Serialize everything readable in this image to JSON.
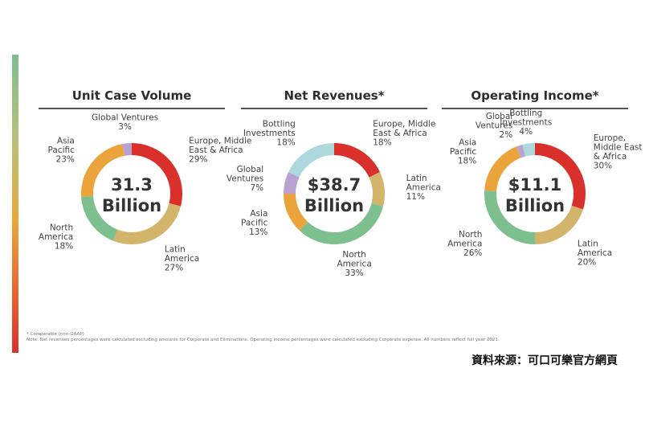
{
  "chart_data": [
    {
      "type": "pie",
      "title": "Unit Case Volume",
      "center_label": [
        "31.3",
        "Billion"
      ],
      "slices": [
        {
          "name": [
            "Europe, Middle",
            "East & Africa"
          ],
          "value": 29,
          "label": "29%",
          "color": "#d9302c"
        },
        {
          "name": [
            "Latin",
            "America"
          ],
          "value": 27,
          "label": "27%",
          "color": "#d2b46a"
        },
        {
          "name": [
            "North",
            "America"
          ],
          "value": 18,
          "label": "18%",
          "color": "#7dbf8e"
        },
        {
          "name": [
            "Asia",
            "Pacific"
          ],
          "value": 23,
          "label": "23%",
          "color": "#eba43c"
        },
        {
          "name": [
            "Global Ventures"
          ],
          "value": 3,
          "label": "3%",
          "color": "#b8a2cf"
        }
      ]
    },
    {
      "type": "pie",
      "title": "Net Revenues*",
      "center_label": [
        "$38.7",
        "Billion"
      ],
      "slices": [
        {
          "name": [
            "Europe, Middle",
            "East & Africa"
          ],
          "value": 18,
          "label": "18%",
          "color": "#d9302c"
        },
        {
          "name": [
            "Latin",
            "America"
          ],
          "value": 11,
          "label": "11%",
          "color": "#d2b46a"
        },
        {
          "name": [
            "North",
            "America"
          ],
          "value": 33,
          "label": "33%",
          "color": "#7dbf8e"
        },
        {
          "name": [
            "Asia",
            "Pacific"
          ],
          "value": 13,
          "label": "13%",
          "color": "#eba43c"
        },
        {
          "name": [
            "Global",
            "Ventures"
          ],
          "value": 7,
          "label": "7%",
          "color": "#b8a2cf"
        },
        {
          "name": [
            "Bottling",
            "Investments"
          ],
          "value": 18,
          "label": "18%",
          "color": "#add8de"
        }
      ]
    },
    {
      "type": "pie",
      "title": "Operating Income*",
      "center_label": [
        "$11.1",
        "Billion"
      ],
      "slices": [
        {
          "name": [
            "Europe,",
            "Middle East",
            "& Africa"
          ],
          "value": 30,
          "label": "30%",
          "color": "#d9302c"
        },
        {
          "name": [
            "Latin",
            "America"
          ],
          "value": 20,
          "label": "20%",
          "color": "#d2b46a"
        },
        {
          "name": [
            "North",
            "America"
          ],
          "value": 26,
          "label": "26%",
          "color": "#7dbf8e"
        },
        {
          "name": [
            "Asia",
            "Pacific"
          ],
          "value": 18,
          "label": "18%",
          "color": "#eba43c"
        },
        {
          "name": [
            "Global",
            "Ventures"
          ],
          "value": 2,
          "label": "2%",
          "color": "#b8a2cf"
        },
        {
          "name": [
            "Bottling",
            "Investments"
          ],
          "value": 4,
          "label": "4%",
          "color": "#add8de"
        }
      ]
    }
  ],
  "footnotes": {
    "comparable": "* Comparable (non-GAAP)",
    "note": "Note: Net revenues percentages were calculated excluding amounts for Corporate and Eliminations. Operating income percentages were calculated excluding Corporate expense. All numbers reflect full year 2021."
  },
  "source": "資料來源：可口可樂官方網頁"
}
